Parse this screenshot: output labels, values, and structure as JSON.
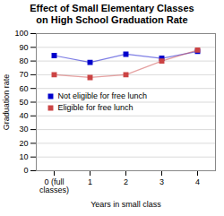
{
  "chart_data": {
    "type": "line",
    "title": "Effect of Small Elementary Classes\non High School Graduation Rate",
    "x_label": "Years in small class",
    "y_label": "Graduation rate",
    "categories": [
      "0 (full\nclasses)",
      "1",
      "2",
      "3",
      "4"
    ],
    "series": [
      {
        "name": "Not eligible for free lunch",
        "color": "#0000cc",
        "marker": "square",
        "values": [
          84,
          79,
          85,
          82,
          87
        ]
      },
      {
        "name": "Eligible for free lunch",
        "color": "#cc4444",
        "marker": "square",
        "values": [
          70,
          68,
          70,
          80,
          88
        ]
      }
    ],
    "ylim": [
      0,
      100
    ],
    "yticks": [
      0,
      10,
      20,
      30,
      40,
      50,
      60,
      70,
      80,
      90,
      100
    ],
    "grid": true,
    "legend": "left"
  }
}
